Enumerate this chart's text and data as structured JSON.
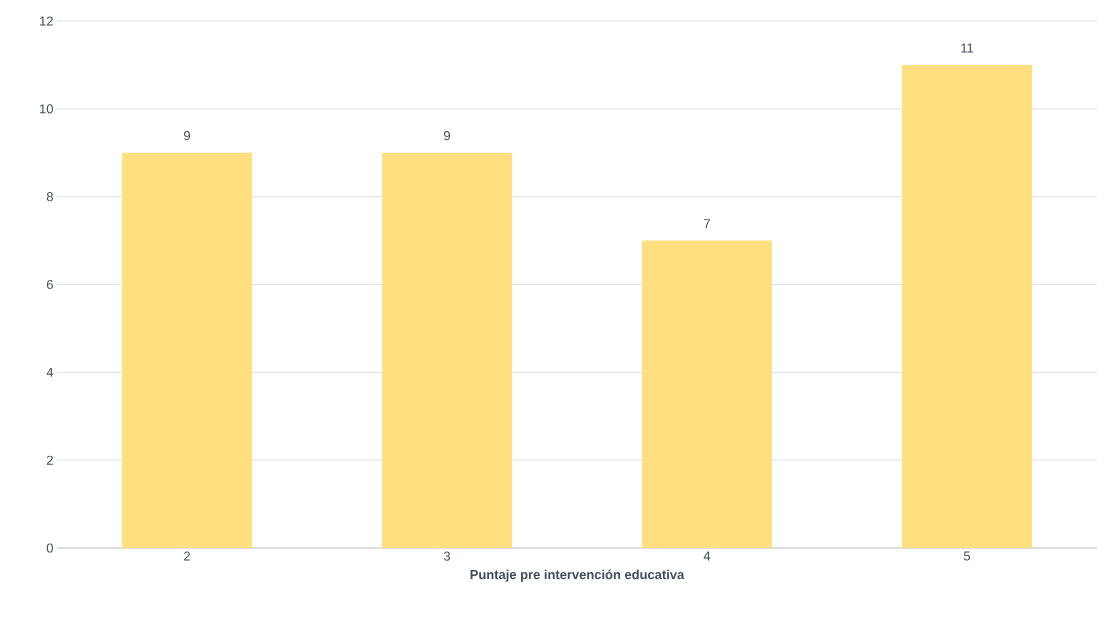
{
  "chart_data": {
    "type": "bar",
    "xlabel": "Puntaje pre intervención educativa",
    "categories": [
      "2",
      "3",
      "4",
      "5"
    ],
    "values": [
      9,
      9,
      7,
      11
    ],
    "color": "#ffdf80",
    "ylim": [
      0,
      12
    ],
    "yticks": [
      0,
      2,
      4,
      6,
      8,
      10,
      12
    ],
    "grid": "y",
    "data_labels": true
  }
}
